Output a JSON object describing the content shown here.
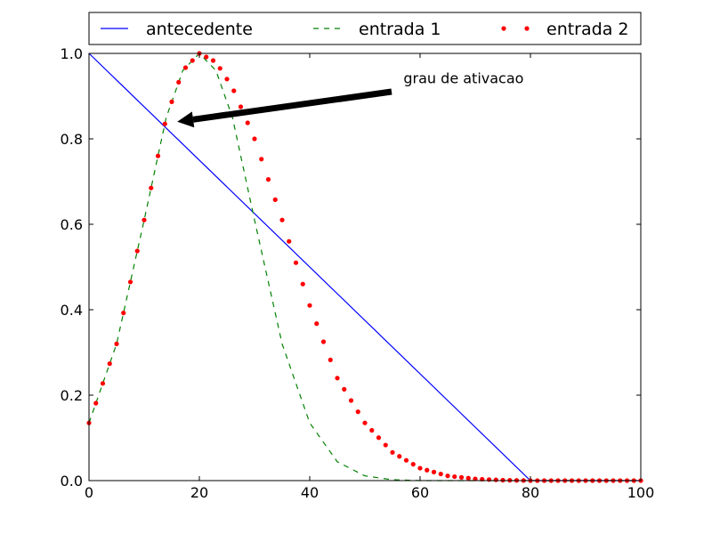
{
  "chart_data": {
    "type": "line",
    "xlim": [
      0,
      100
    ],
    "ylim": [
      0,
      1
    ],
    "xticks": [
      0,
      20,
      40,
      60,
      80,
      100
    ],
    "yticks": [
      0,
      0.2,
      0.4,
      0.6,
      0.8,
      1.0
    ],
    "xtick_labels": [
      "0",
      "20",
      "40",
      "60",
      "80",
      "100"
    ],
    "ytick_labels": [
      "0.0",
      "0.2",
      "0.4",
      "0.6",
      "0.8",
      "1.0"
    ],
    "grid": false,
    "legend_position": "top",
    "series": [
      {
        "name": "antecedente",
        "style": "solid",
        "color": "#0000ff",
        "x": [
          0,
          80,
          100
        ],
        "y": [
          1.0,
          0.0,
          0.0
        ]
      },
      {
        "name": "entrada 1",
        "style": "dashed",
        "color": "#008000",
        "x": [
          0,
          5,
          10,
          14,
          17,
          20,
          23,
          26,
          30,
          35,
          40,
          45,
          50,
          55,
          60,
          65,
          70,
          80,
          100
        ],
        "y": [
          0.135,
          0.32,
          0.61,
          0.85,
          0.96,
          1.0,
          0.96,
          0.85,
          0.61,
          0.32,
          0.135,
          0.044,
          0.011,
          0.002,
          0.0,
          0.0,
          0.0,
          0.0,
          0.0
        ]
      },
      {
        "name": "entrada 2",
        "style": "dotted",
        "color": "#ff0000",
        "x": [
          0,
          5,
          10,
          14,
          17,
          20,
          23,
          26,
          30,
          35,
          40,
          45,
          50,
          55,
          60,
          65,
          70,
          75,
          80,
          90,
          100
        ],
        "y": [
          0.135,
          0.32,
          0.61,
          0.85,
          0.96,
          1.0,
          0.98,
          0.92,
          0.8,
          0.61,
          0.41,
          0.24,
          0.135,
          0.066,
          0.029,
          0.011,
          0.004,
          0.001,
          0.0,
          0.0,
          0.0
        ]
      }
    ],
    "annotations": [
      {
        "text": "grau de ativacao",
        "text_x": 57,
        "text_y": 0.93,
        "arrow_to_x": 16,
        "arrow_to_y": 0.84
      }
    ]
  }
}
